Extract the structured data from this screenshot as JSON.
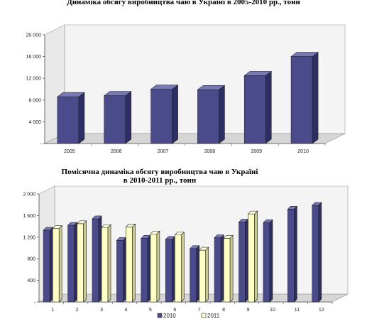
{
  "chart_data": [
    {
      "type": "bar",
      "title": "Динаміка обсягу виробництва чаю в Україні в 2005-2010 рр., тонн",
      "categories": [
        "2005",
        "2006",
        "2007",
        "2008",
        "2009",
        "2010"
      ],
      "values": [
        8600,
        8800,
        10000,
        9900,
        12500,
        16000
      ],
      "yticks": [
        "-",
        "4 000",
        "8 000",
        "12 000",
        "16 000",
        "20 000"
      ],
      "ylim": [
        0,
        20000
      ],
      "grid": false,
      "colors": {
        "bar": "#4b4b8c",
        "bar_top": "#7878b4",
        "bar_side": "#2e2e66",
        "wall": "#f4f4f4",
        "floor": "#d6d6d6"
      }
    },
    {
      "type": "bar",
      "title": "Помісячна динаміка обсягу виробництва чаю в Україні в 2010-2011 рр., тонн",
      "title_lines": [
        "Помісячна динаміка обсягу виробництва чаю в Україні",
        "в 2010-2011 рр., тонн"
      ],
      "categories": [
        "1",
        "2",
        "3",
        "4",
        "5",
        "6",
        "7",
        "8",
        "9",
        "10",
        "11",
        "12"
      ],
      "series": [
        {
          "name": "2010",
          "values": [
            1330,
            1420,
            1540,
            1140,
            1180,
            1160,
            990,
            1190,
            1480,
            1470,
            1720,
            1790
          ]
        },
        {
          "name": "2011",
          "values": [
            1360,
            1450,
            1380,
            1390,
            1260,
            1240,
            960,
            1180,
            1630,
            null,
            null,
            null
          ]
        }
      ],
      "yticks": [
        "-",
        "400",
        "800",
        "1 200",
        "1 600",
        "2 000"
      ],
      "ylim": [
        0,
        2000
      ],
      "legend": "bottom",
      "grid": false,
      "colors": {
        "2010": "#4b4b8c",
        "2010_top": "#7878b4",
        "2010_side": "#2e2e66",
        "2011": "#ffffc6",
        "2011_top": "#ffffe8",
        "2011_side": "#c9c98a",
        "wall": "#f4f4f4",
        "floor": "#d6d6d6"
      }
    }
  ]
}
